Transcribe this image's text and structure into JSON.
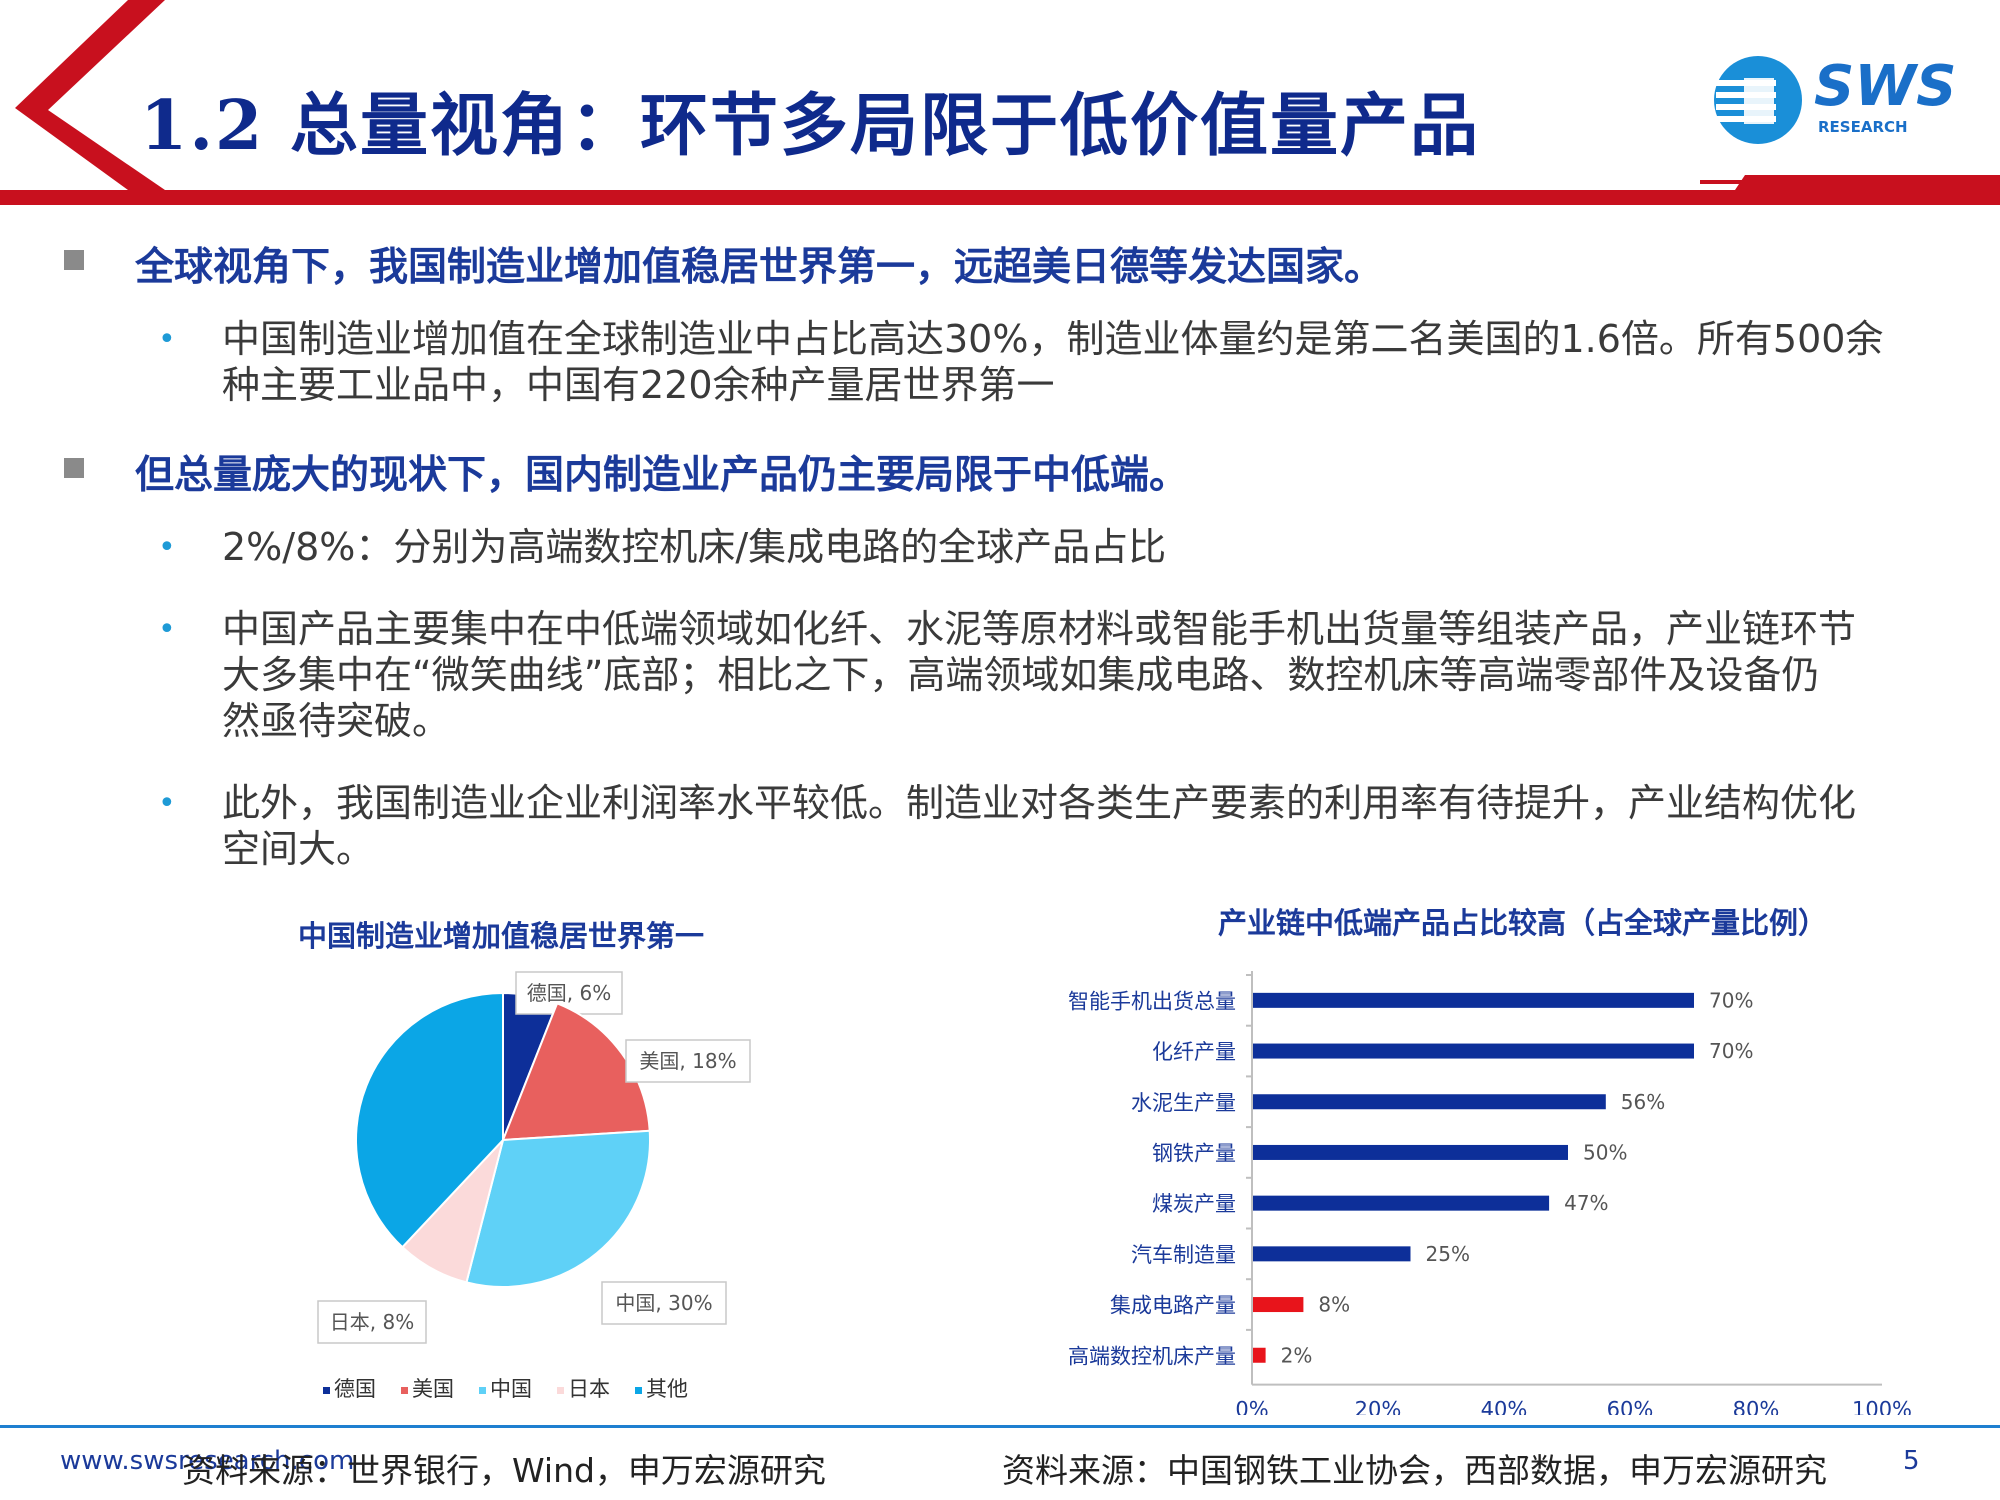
{
  "title": "1.2 总量视角：环节多局限于低价值量产品",
  "logo": {
    "main": "SWS",
    "sub": "RESEARCH"
  },
  "colors": {
    "brand_red": "#c8101e",
    "title_blue": "#0f2a8c",
    "bar_blue": "#0d2f99",
    "bar_red": "#e8141b"
  },
  "bullets": [
    {
      "heading": "全球视角下，我国制造业增加值稳居世界第一，远超美日德等发达国家。",
      "items": [
        [
          "中国制造业增加值在全球制造业中占比高达30%，制造业体量约是第二名美国的1.6倍。所有500余",
          "种主要工业品中，中国有220余种产量居世界第一"
        ]
      ]
    },
    {
      "heading": "但总量庞大的现状下，国内制造业产品仍主要局限于中低端。",
      "items": [
        [
          "2%/8%：分别为高端数控机床/集成电路的全球产品占比"
        ],
        [
          "中国产品主要集中在中低端领域如化纤、水泥等原材料或智能手机出货量等组装产品，产业链环节",
          "大多集中在“微笑曲线”底部；相比之下，高端领域如集成电路、数控机床等高端零部件及设备仍",
          "然亟待突破。"
        ],
        [
          "此外，我国制造业企业利润率水平较低。制造业对各类生产要素的利用率有待提升，产业结构优化",
          "空间大。"
        ]
      ]
    }
  ],
  "bullet_glyph": "•",
  "chart_data": [
    {
      "type": "pie",
      "title": "中国制造业增加值稳居世界第一",
      "slices": [
        {
          "name": "德国",
          "value": 6,
          "color": "#0d2f99",
          "label": "德国, 6%"
        },
        {
          "name": "美国",
          "value": 18,
          "color": "#e8605e",
          "label": "美国, 18%"
        },
        {
          "name": "中国",
          "value": 30,
          "color": "#5fd1f7",
          "label": "中国, 30%"
        },
        {
          "name": "日本",
          "value": 8,
          "color": "#fbdada",
          "label": "日本, 8%"
        },
        {
          "name": "其他",
          "value": 38,
          "color": "#0ba6e6",
          "label": ""
        }
      ],
      "legend": [
        "德国",
        "美国",
        "中国",
        "日本",
        "其他"
      ],
      "legend_position": "bottom"
    },
    {
      "type": "bar",
      "orientation": "horizontal",
      "title": "产业链中低端产品占比较高（占全球产量比例）",
      "categories": [
        "智能手机出货总量",
        "化纤产量",
        "水泥生产量",
        "钢铁产量",
        "煤炭产量",
        "汽车制造量",
        "集成电路产量",
        "高端数控机床产量"
      ],
      "values": [
        70,
        70,
        56,
        50,
        47,
        25,
        8,
        2
      ],
      "value_labels": [
        "70%",
        "70%",
        "56%",
        "50%",
        "47%",
        "25%",
        "8%",
        "2%"
      ],
      "bar_colors": [
        "#0d2f99",
        "#0d2f99",
        "#0d2f99",
        "#0d2f99",
        "#0d2f99",
        "#0d2f99",
        "#e8141b",
        "#e8141b"
      ],
      "xlim": [
        0,
        100
      ],
      "x_ticks": [
        "0%",
        "20%",
        "40%",
        "60%",
        "80%",
        "100%"
      ],
      "grid": false
    }
  ],
  "footer": {
    "website": "www.swsresearch.com",
    "source_left": "资料来源：世界银行，Wind，申万宏源研究",
    "source_right": "资料来源：中国钢铁工业协会，西部数据，申万宏源研究",
    "page_number": "5"
  }
}
